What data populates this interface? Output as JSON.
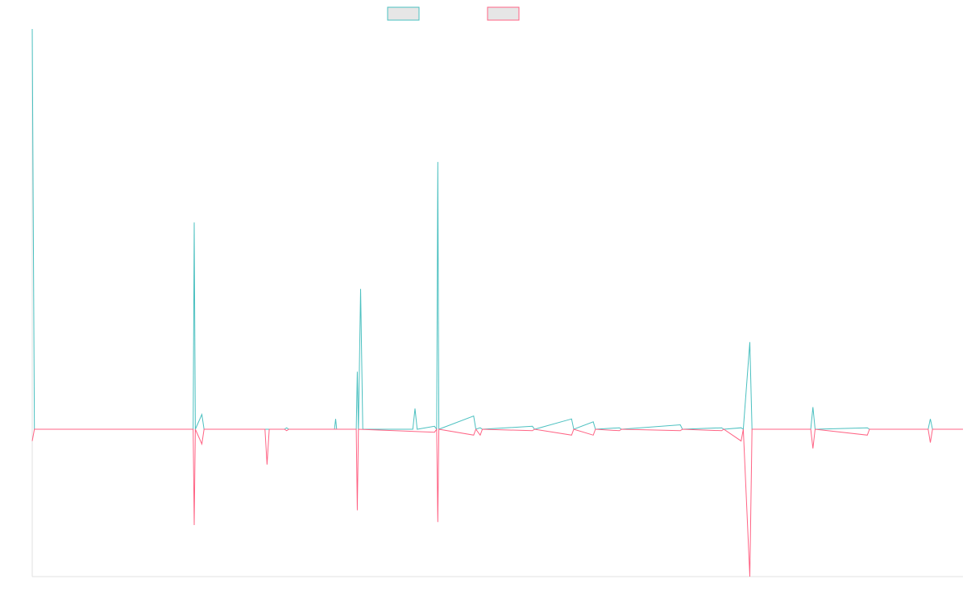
{
  "chart_data": {
    "type": "line",
    "title": "",
    "xlabel": "",
    "ylabel": "",
    "legend_position": "top-center",
    "grid": false,
    "ylim": [
      -1,
      2.71
    ],
    "xlim": [
      0,
      428
    ],
    "series": [
      {
        "color": "#4bc0c0",
        "points": [
          [
            0,
            2.71
          ],
          [
            1,
            0
          ],
          [
            74,
            0
          ],
          [
            74.5,
            1.4
          ],
          [
            75,
            0
          ],
          [
            78,
            0.1
          ],
          [
            79,
            0
          ],
          [
            116,
            0
          ],
          [
            117,
            0.01
          ],
          [
            118,
            0
          ],
          [
            139,
            0
          ],
          [
            139.5,
            0.07
          ],
          [
            140,
            0
          ],
          [
            149,
            0
          ],
          [
            149.5,
            0.39
          ],
          [
            150,
            0
          ],
          [
            151,
            0.95
          ],
          [
            152,
            0
          ],
          [
            175,
            0
          ],
          [
            176,
            0.14
          ],
          [
            177,
            0
          ],
          [
            185,
            0.02
          ],
          [
            186,
            0
          ],
          [
            186.5,
            1.81
          ],
          [
            187,
            0
          ],
          [
            203,
            0.09
          ],
          [
            204,
            0
          ],
          [
            206,
            0.01
          ],
          [
            207,
            0
          ],
          [
            230,
            0.02
          ],
          [
            231,
            0
          ],
          [
            248,
            0.07
          ],
          [
            249,
            0
          ],
          [
            258,
            0.05
          ],
          [
            259,
            0
          ],
          [
            270,
            0.01
          ],
          [
            271,
            0
          ],
          [
            298,
            0.03
          ],
          [
            299,
            0
          ],
          [
            317,
            0.01
          ],
          [
            318,
            0
          ],
          [
            326,
            0.01
          ],
          [
            327,
            0
          ],
          [
            330,
            0.59
          ],
          [
            331,
            0
          ],
          [
            358,
            0
          ],
          [
            359,
            0.15
          ],
          [
            360,
            0
          ],
          [
            384,
            0.01
          ],
          [
            385,
            0
          ],
          [
            412,
            0
          ],
          [
            413,
            0.07
          ],
          [
            414,
            0
          ],
          [
            428,
            0
          ]
        ]
      },
      {
        "color": "#ff6384",
        "points": [
          [
            0,
            -0.08
          ],
          [
            1,
            0
          ],
          [
            74,
            0
          ],
          [
            74.5,
            -0.65
          ],
          [
            75,
            0
          ],
          [
            78,
            -0.1
          ],
          [
            79,
            0
          ],
          [
            116,
            0
          ],
          [
            117,
            -0.01
          ],
          [
            118,
            0
          ],
          [
            107,
            0
          ],
          [
            108,
            -0.24
          ],
          [
            109,
            0
          ],
          [
            149,
            0
          ],
          [
            149.5,
            -0.55
          ],
          [
            150,
            0
          ],
          [
            185,
            -0.02
          ],
          [
            186,
            0
          ],
          [
            186.5,
            -0.63
          ],
          [
            187,
            0
          ],
          [
            203,
            -0.04
          ],
          [
            204,
            0
          ],
          [
            206,
            -0.04
          ],
          [
            207,
            0
          ],
          [
            230,
            -0.01
          ],
          [
            231,
            0
          ],
          [
            248,
            -0.04
          ],
          [
            249,
            0
          ],
          [
            258,
            -0.04
          ],
          [
            259,
            0
          ],
          [
            270,
            -0.01
          ],
          [
            271,
            0
          ],
          [
            298,
            -0.01
          ],
          [
            299,
            0
          ],
          [
            317,
            -0.01
          ],
          [
            318,
            0
          ],
          [
            326,
            -0.08
          ],
          [
            327,
            0
          ],
          [
            330,
            -1.0
          ],
          [
            331,
            0
          ],
          [
            358,
            0
          ],
          [
            359,
            -0.13
          ],
          [
            360,
            0
          ],
          [
            384,
            -0.04
          ],
          [
            385,
            0
          ],
          [
            412,
            0
          ],
          [
            413,
            -0.09
          ],
          [
            414,
            0
          ],
          [
            428,
            0
          ]
        ]
      }
    ]
  }
}
